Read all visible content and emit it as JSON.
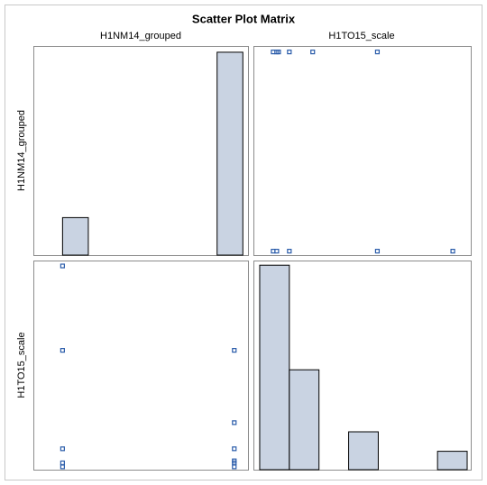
{
  "title": "Scatter Plot Matrix",
  "columns": [
    "H1NM14_grouped",
    "H1TO15_scale"
  ],
  "rows": [
    "H1NM14_grouped",
    "H1TO15_scale"
  ],
  "chart_data": [
    {
      "type": "histogram",
      "bins": [
        0,
        0.15,
        0.3,
        0.45,
        0.6,
        0.75,
        0.9,
        1.05
      ],
      "values": [
        15.6,
        0,
        0,
        0,
        0,
        0,
        84.4
      ],
      "xlim": [
        -0.17,
        1.08
      ],
      "ylim": [
        0,
        87
      ],
      "color": "#c9d3e2"
    },
    {
      "type": "scatter",
      "x": [
        0,
        2,
        9,
        58,
        100,
        0,
        2,
        3,
        9,
        22,
        58
      ],
      "y": [
        0,
        0,
        0,
        0,
        0,
        1,
        1,
        1,
        1,
        1,
        1
      ],
      "xlim": [
        -11,
        110
      ],
      "ylim": [
        -0.02,
        1.03
      ],
      "color": "#2a5caa"
    },
    {
      "type": "scatter",
      "x": [
        0,
        0,
        0,
        0,
        0,
        1,
        1,
        1,
        1,
        1,
        1
      ],
      "y": [
        0,
        2,
        9,
        58,
        100,
        0,
        2,
        3,
        9,
        22,
        58
      ],
      "xlim": [
        -0.17,
        1.08
      ],
      "ylim": [
        -1.4,
        102.7
      ],
      "color": "#2a5caa"
    },
    {
      "type": "histogram",
      "bins": [
        -7.5,
        9,
        25.5,
        42,
        58.5,
        75,
        91.5,
        108
      ],
      "values": [
        56.7,
        27.7,
        0,
        10.5,
        0,
        0,
        5.1
      ],
      "xlim": [
        -11,
        110
      ],
      "ylim": [
        0,
        58
      ],
      "color": "#c9d3e2"
    }
  ]
}
